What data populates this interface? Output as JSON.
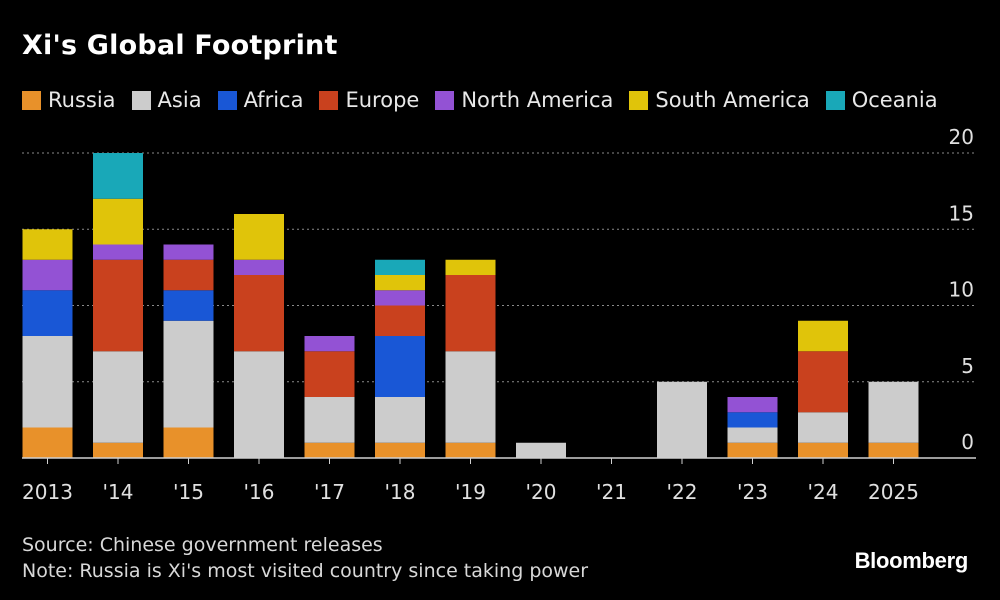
{
  "header": {
    "title": "Xi's Global Footprint"
  },
  "footer": {
    "source": "Source: Chinese government releases",
    "note": "Note: Russia is Xi's most visited country since taking power"
  },
  "brand": "Bloomberg",
  "chart_data": {
    "type": "bar",
    "stacked": true,
    "title": "Xi's Global Footprint",
    "xlabel": "",
    "ylabel": "",
    "ylim": [
      0,
      20
    ],
    "yticks": [
      0,
      5,
      10,
      15,
      20
    ],
    "y_axis_side": "right",
    "grid": "dotted horizontal",
    "legend_position": "top",
    "categories": [
      "2013",
      "'14",
      "'15",
      "'16",
      "'17",
      "'18",
      "'19",
      "'20",
      "'21",
      "'22",
      "'23",
      "'24",
      "2025"
    ],
    "series": [
      {
        "name": "Russia",
        "color": "#e8912a",
        "values": [
          2,
          1,
          2,
          0,
          1,
          1,
          1,
          0,
          0,
          0,
          1,
          1,
          1
        ]
      },
      {
        "name": "Asia",
        "color": "#cccccc",
        "values": [
          6,
          6,
          7,
          7,
          3,
          3,
          6,
          1,
          0,
          5,
          1,
          2,
          4
        ]
      },
      {
        "name": "Africa",
        "color": "#1957d6",
        "values": [
          3,
          0,
          2,
          0,
          0,
          4,
          0,
          0,
          0,
          0,
          1,
          0,
          0
        ]
      },
      {
        "name": "Europe",
        "color": "#c9411e",
        "values": [
          0,
          6,
          2,
          5,
          3,
          2,
          5,
          0,
          0,
          0,
          0,
          4,
          0
        ]
      },
      {
        "name": "North America",
        "color": "#9352d4",
        "values": [
          2,
          1,
          1,
          1,
          1,
          1,
          0,
          0,
          0,
          0,
          1,
          0,
          0
        ]
      },
      {
        "name": "South America",
        "color": "#e0c40a",
        "values": [
          2,
          3,
          0,
          3,
          0,
          1,
          1,
          0,
          0,
          0,
          0,
          2,
          0
        ]
      },
      {
        "name": "Oceania",
        "color": "#19a8b8",
        "values": [
          0,
          3,
          0,
          0,
          0,
          1,
          0,
          0,
          0,
          0,
          0,
          0,
          0
        ]
      }
    ]
  }
}
